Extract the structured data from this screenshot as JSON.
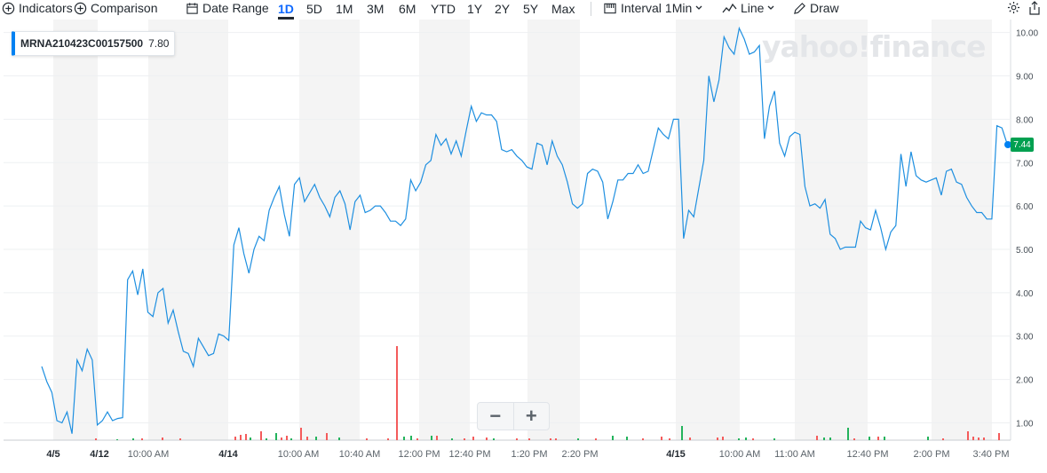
{
  "toolbar": {
    "indicators_label": "Indicators",
    "comparison_label": "Comparison",
    "date_range_label": "Date Range",
    "ranges": [
      "1D",
      "5D",
      "1M",
      "3M",
      "6M",
      "YTD",
      "1Y",
      "2Y",
      "5Y",
      "Max"
    ],
    "active_range": "1D",
    "interval_label": "Interval",
    "interval_value": "1Min",
    "charttype_label": "Line",
    "draw_label": "Draw",
    "icons": [
      "plus-circle-icon",
      "calendar-icon",
      "interval-icon",
      "line-chart-icon",
      "pencil-icon",
      "gear-icon",
      "share-icon"
    ]
  },
  "legend": {
    "symbol": "MRNA210423C00157500",
    "value": "7.80"
  },
  "watermark": "yahoo!finance",
  "zoom": {
    "minus": "−",
    "plus": "+"
  },
  "colors": {
    "line": "#1e8fe0",
    "up": "#23b35c",
    "down": "#f45b5b",
    "band": "#f4f4f4",
    "accent": "#0081f2",
    "last_tag": "#00a050"
  },
  "chart_data": {
    "type": "line",
    "title": "",
    "xlabel": "",
    "ylabel": "",
    "ylim": [
      0.6,
      10.3
    ],
    "yticks": [
      "1.00",
      "2.00",
      "3.00",
      "4.00",
      "5.00",
      "6.00",
      "7.00",
      "8.00",
      "9.00",
      "10.00"
    ],
    "xticks": [
      "4/5",
      "4/12",
      "10:00 AM",
      "4/14",
      "10:00 AM",
      "10:40 AM",
      "12:00 PM",
      "12:40 PM",
      "1:20 PM",
      "2:20 PM",
      "4/15",
      "10:00 AM",
      "11:00 AM",
      "12:40 PM",
      "2:00 PM",
      "3:40 PM"
    ],
    "last_value_label": "7.44",
    "grid": true,
    "series": [
      {
        "values": [
          2.3,
          1.95,
          1.7,
          1.05,
          1.0,
          1.25,
          0.75,
          2.45,
          2.2,
          2.7,
          2.45,
          0.95,
          1.05,
          1.25,
          1.05,
          1.1,
          1.12,
          4.3,
          4.5,
          3.95,
          4.55,
          3.55,
          3.45,
          4.0,
          4.1,
          3.3,
          3.6,
          3.1,
          2.65,
          2.6,
          2.3,
          2.95,
          2.75,
          2.55,
          2.6,
          3.05,
          3.0,
          2.9,
          5.1,
          5.5,
          4.9,
          4.45,
          5.0,
          5.3,
          5.2,
          5.9,
          6.2,
          6.45,
          5.8,
          5.3,
          6.5,
          6.65,
          6.1,
          6.3,
          6.5,
          6.2,
          6.0,
          5.75,
          6.2,
          6.35,
          6.05,
          5.45,
          6.1,
          6.25,
          5.85,
          5.9,
          6.0,
          6.0,
          5.85,
          5.65,
          5.65,
          5.55,
          5.7,
          6.6,
          6.35,
          6.55,
          6.95,
          7.05,
          7.65,
          7.4,
          7.55,
          7.2,
          7.5,
          7.15,
          7.75,
          8.3,
          7.95,
          8.15,
          8.1,
          8.1,
          7.95,
          7.3,
          7.25,
          7.3,
          7.15,
          7.05,
          6.9,
          6.85,
          7.45,
          7.4,
          6.95,
          7.5,
          7.15,
          6.95,
          6.55,
          6.05,
          5.95,
          6.05,
          6.75,
          6.85,
          6.8,
          6.55,
          5.7,
          6.1,
          6.6,
          6.6,
          6.75,
          6.75,
          6.95,
          6.75,
          6.8,
          7.3,
          7.8,
          7.65,
          7.55,
          8.0,
          8.0,
          5.25,
          5.9,
          5.75,
          6.4,
          7.05,
          9.0,
          8.4,
          8.9,
          9.9,
          9.65,
          9.5,
          10.1,
          9.85,
          9.5,
          9.55,
          9.7,
          7.55,
          8.3,
          8.65,
          7.45,
          7.15,
          7.6,
          7.7,
          7.65,
          6.45,
          6.0,
          6.05,
          5.95,
          6.15,
          5.35,
          5.25,
          5.0,
          5.05,
          5.05,
          5.05,
          5.65,
          5.5,
          5.45,
          5.9,
          5.5,
          5.0,
          5.4,
          5.55,
          7.2,
          6.45,
          7.25,
          6.7,
          6.6,
          6.55,
          6.6,
          6.65,
          6.25,
          6.8,
          6.85,
          6.55,
          6.5,
          6.2,
          6.0,
          5.85,
          5.85,
          5.7,
          5.7,
          7.85,
          7.8,
          7.44
        ]
      }
    ],
    "volume": [
      {
        "x": 108,
        "h": 2,
        "up": false
      },
      {
        "x": 132,
        "h": 1,
        "up": true
      },
      {
        "x": 150,
        "h": 2,
        "up": true
      },
      {
        "x": 160,
        "h": 2,
        "up": false
      },
      {
        "x": 183,
        "h": 3,
        "up": false
      },
      {
        "x": 203,
        "h": 2,
        "up": false
      },
      {
        "x": 265,
        "h": 4,
        "up": false
      },
      {
        "x": 271,
        "h": 6,
        "up": false
      },
      {
        "x": 277,
        "h": 7,
        "up": false
      },
      {
        "x": 282,
        "h": 3,
        "up": true
      },
      {
        "x": 294,
        "h": 10,
        "up": false
      },
      {
        "x": 300,
        "h": 2,
        "up": true
      },
      {
        "x": 311,
        "h": 8,
        "up": true
      },
      {
        "x": 317,
        "h": 3,
        "up": false
      },
      {
        "x": 323,
        "h": 5,
        "up": false
      },
      {
        "x": 328,
        "h": 2,
        "up": true
      },
      {
        "x": 339,
        "h": 14,
        "up": false
      },
      {
        "x": 346,
        "h": 4,
        "up": false
      },
      {
        "x": 356,
        "h": 4,
        "up": true
      },
      {
        "x": 368,
        "h": 8,
        "up": false
      },
      {
        "x": 382,
        "h": 3,
        "up": true
      },
      {
        "x": 413,
        "h": 2,
        "up": false
      },
      {
        "x": 437,
        "h": 2,
        "up": false
      },
      {
        "x": 447,
        "h": 106,
        "up": false
      },
      {
        "x": 455,
        "h": 4,
        "up": true
      },
      {
        "x": 463,
        "h": 5,
        "up": true
      },
      {
        "x": 470,
        "h": 2,
        "up": false
      },
      {
        "x": 486,
        "h": 5,
        "up": true
      },
      {
        "x": 492,
        "h": 5,
        "up": false
      },
      {
        "x": 509,
        "h": 2,
        "up": true
      },
      {
        "x": 523,
        "h": 2,
        "up": false
      },
      {
        "x": 533,
        "h": 4,
        "up": false
      },
      {
        "x": 548,
        "h": 3,
        "up": false
      },
      {
        "x": 556,
        "h": 2,
        "up": true
      },
      {
        "x": 582,
        "h": 2,
        "up": false
      },
      {
        "x": 596,
        "h": 2,
        "up": false
      },
      {
        "x": 620,
        "h": 2,
        "up": false
      },
      {
        "x": 626,
        "h": 2,
        "up": false
      },
      {
        "x": 651,
        "h": 2,
        "up": true
      },
      {
        "x": 671,
        "h": 2,
        "up": false
      },
      {
        "x": 690,
        "h": 5,
        "up": true
      },
      {
        "x": 706,
        "h": 4,
        "up": true
      },
      {
        "x": 724,
        "h": 2,
        "up": false
      },
      {
        "x": 745,
        "h": 4,
        "up": false
      },
      {
        "x": 754,
        "h": 2,
        "up": false
      },
      {
        "x": 768,
        "h": 16,
        "up": true
      },
      {
        "x": 777,
        "h": 3,
        "up": false
      },
      {
        "x": 808,
        "h": 3,
        "up": false
      },
      {
        "x": 814,
        "h": 4,
        "up": false
      },
      {
        "x": 832,
        "h": 2,
        "up": true
      },
      {
        "x": 840,
        "h": 3,
        "up": true
      },
      {
        "x": 848,
        "h": 2,
        "up": false
      },
      {
        "x": 872,
        "h": 2,
        "up": true
      },
      {
        "x": 920,
        "h": 5,
        "up": false
      },
      {
        "x": 928,
        "h": 3,
        "up": true
      },
      {
        "x": 935,
        "h": 3,
        "up": true
      },
      {
        "x": 955,
        "h": 14,
        "up": true
      },
      {
        "x": 962,
        "h": 2,
        "up": false
      },
      {
        "x": 979,
        "h": 4,
        "up": true
      },
      {
        "x": 989,
        "h": 4,
        "up": false
      },
      {
        "x": 996,
        "h": 4,
        "up": true
      },
      {
        "x": 1045,
        "h": 4,
        "up": true
      },
      {
        "x": 1062,
        "h": 2,
        "up": false
      },
      {
        "x": 1090,
        "h": 10,
        "up": false
      },
      {
        "x": 1096,
        "h": 4,
        "up": false
      },
      {
        "x": 1102,
        "h": 3,
        "up": false
      },
      {
        "x": 1108,
        "h": 3,
        "up": false
      },
      {
        "x": 1125,
        "h": 8,
        "up": false
      }
    ]
  }
}
